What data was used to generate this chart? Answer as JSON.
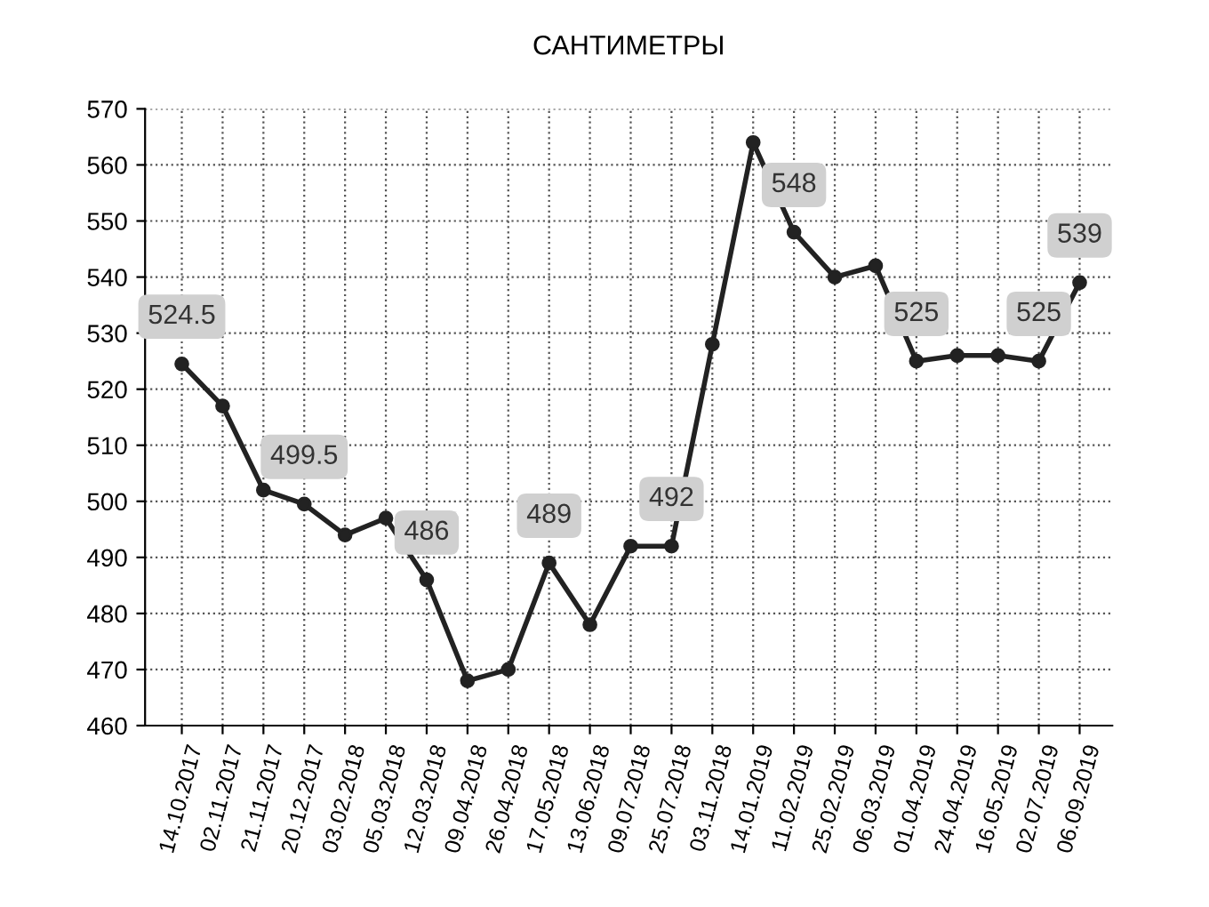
{
  "chart_data": {
    "type": "line",
    "title": "САНТИМЕТРЫ",
    "categories": [
      "14.10.2017",
      "02.11.2017",
      "21.11.2017",
      "20.12.2017",
      "03.02.2018",
      "05.03.2018",
      "12.03.2018",
      "09.04.2018",
      "26.04.2018",
      "17.05.2018",
      "13.06.2018",
      "09.07.2018",
      "25.07.2018",
      "03.11.2018",
      "14.01.2019",
      "11.02.2019",
      "25.02.2019",
      "06.03.2019",
      "01.04.2019",
      "24.04.2019",
      "16.05.2019",
      "02.07.2019",
      "06.09.2019"
    ],
    "series": [
      {
        "color": "#222222",
        "values": [
          524.5,
          517,
          502,
          499.5,
          494,
          497,
          486,
          468,
          470,
          489,
          478,
          492,
          492,
          528,
          564,
          548,
          540,
          542,
          525,
          526,
          526,
          525,
          539
        ],
        "value_labels": [
          "524.5",
          null,
          null,
          "499.5",
          null,
          null,
          "486",
          null,
          null,
          "489",
          null,
          null,
          "492",
          null,
          null,
          "548",
          null,
          null,
          "525",
          null,
          null,
          "525",
          "539"
        ]
      }
    ],
    "ylim": [
      460,
      570
    ],
    "yticks": [
      460,
      470,
      480,
      490,
      500,
      510,
      520,
      530,
      540,
      550,
      560,
      570
    ],
    "grid": true,
    "legend": false,
    "marker": "circle",
    "line_style": "solid"
  }
}
